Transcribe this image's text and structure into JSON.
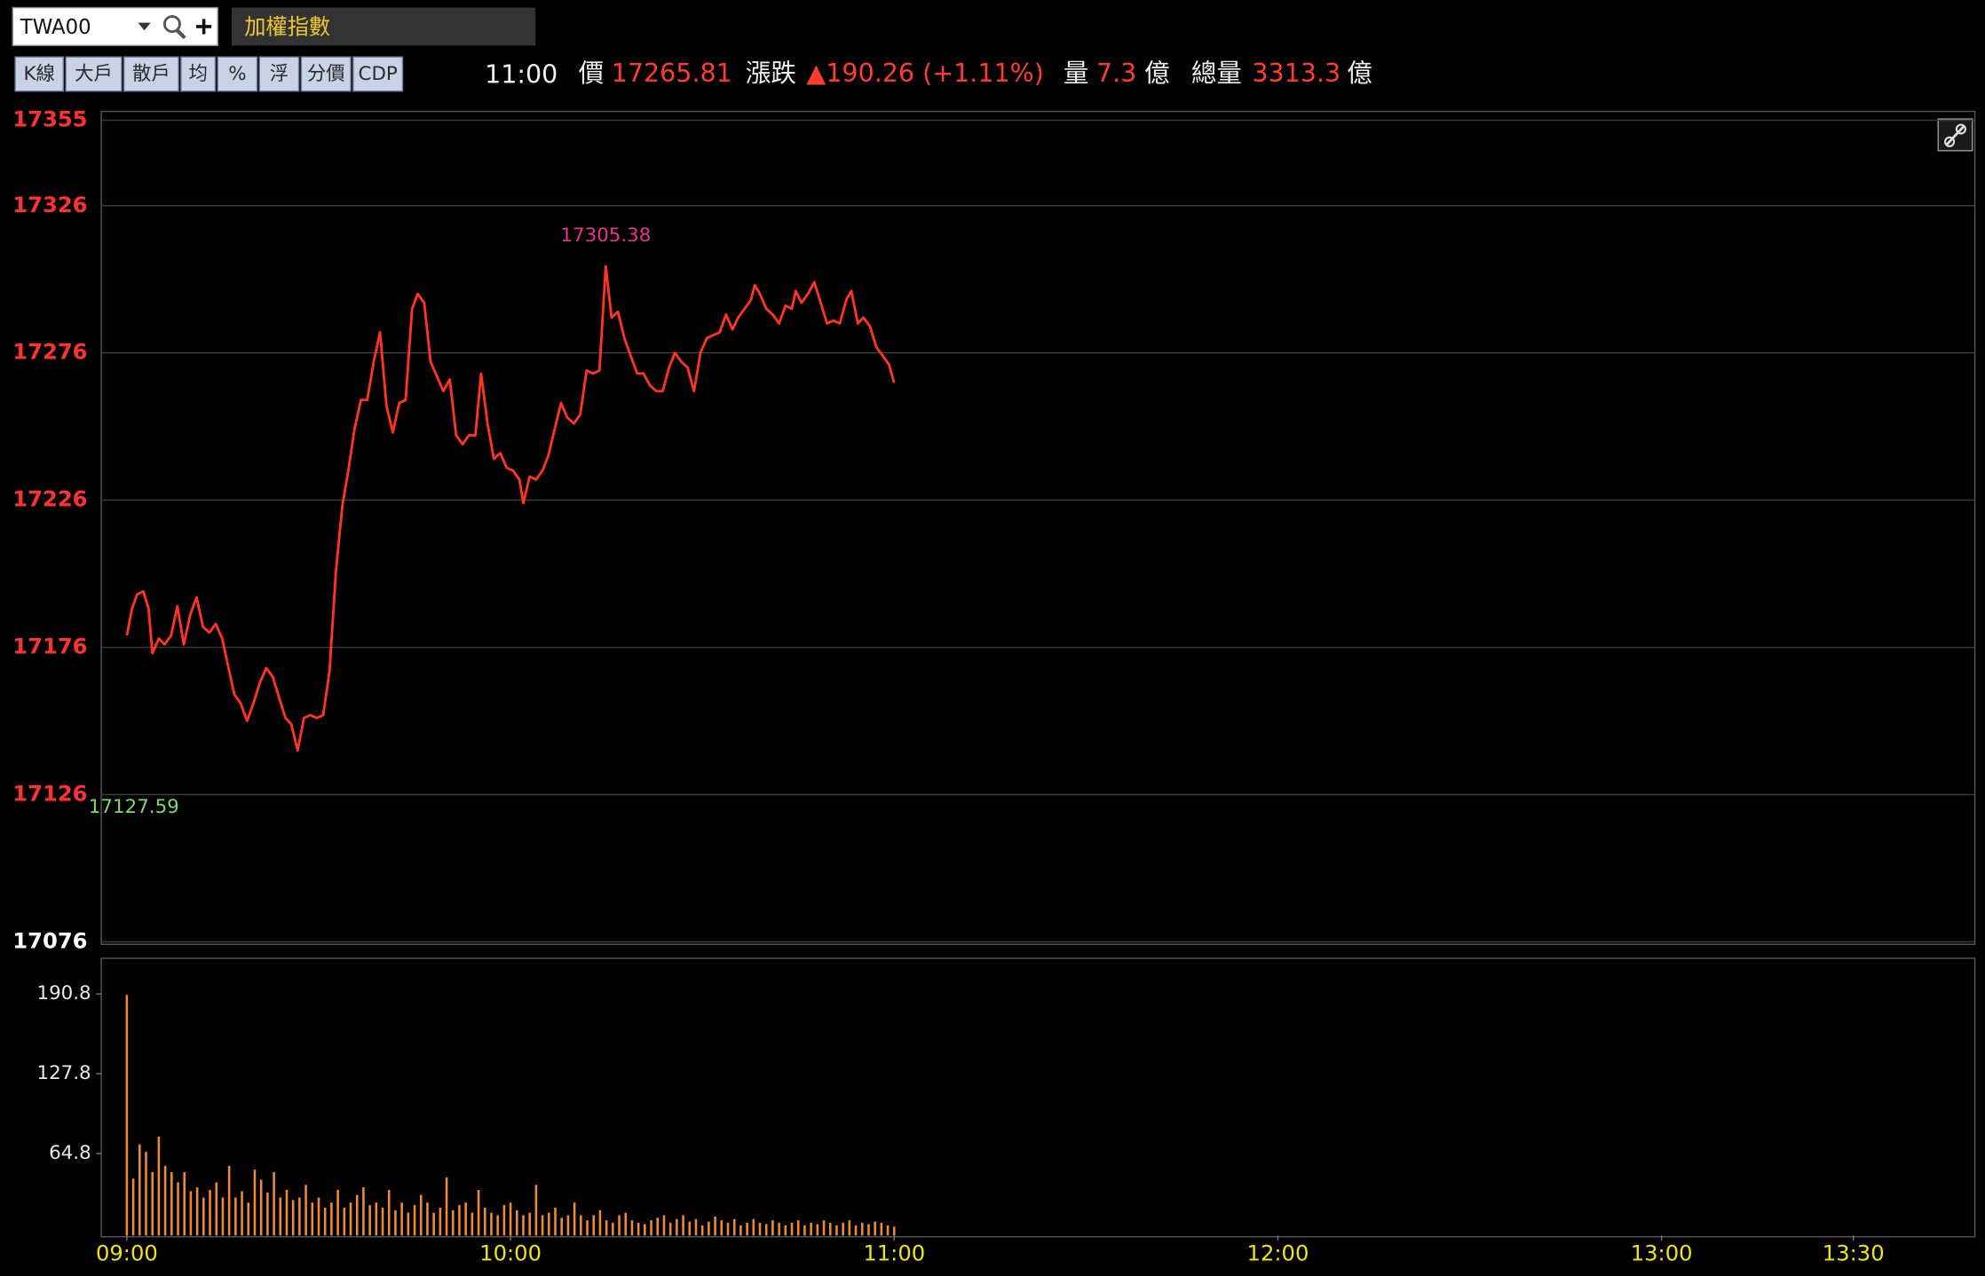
{
  "toolbar": {
    "symbol": "TWA00",
    "name": "加權指數",
    "buttons": [
      "K線",
      "大戶",
      "散戶",
      "均",
      "%",
      "浮",
      "分價",
      "CDP"
    ]
  },
  "quote": {
    "time": "11:00",
    "price_label": "價",
    "price": 17265.81,
    "change_label": "漲跌",
    "change": "▲190.26 (+1.11%)",
    "volume_label": "量",
    "volume": 7.3,
    "volume_unit": "億",
    "total_label": "總量",
    "total": 3313.3,
    "total_unit": "億"
  },
  "chart_data": [
    {
      "type": "line",
      "color": "#ff3322",
      "high": 17305.38,
      "low": 17127.59,
      "xlim": [
        -4,
        289
      ],
      "ylim": [
        17076,
        17355
      ],
      "yticks": [
        17076,
        17126,
        17176,
        17226,
        17276,
        17326,
        17355
      ],
      "grid": true,
      "x": [
        0,
        0.8,
        1.6,
        2.6,
        3.4,
        4.0,
        5.0,
        5.9,
        6.9,
        7.9,
        8.9,
        9.9,
        10.9,
        11.9,
        12.9,
        13.9,
        14.9,
        15.8,
        16.8,
        17.8,
        18.8,
        19.8,
        20.8,
        21.8,
        22.8,
        23.8,
        24.8,
        25.7,
        26.7,
        27.7,
        28.7,
        29.7,
        30.7,
        31.7,
        32.7,
        33.7,
        34.7,
        35.6,
        36.6,
        37.6,
        38.6,
        39.6,
        40.6,
        41.6,
        42.6,
        43.6,
        44.6,
        45.5,
        46.5,
        47.5,
        48.5,
        49.5,
        50.5,
        51.5,
        52.5,
        53.5,
        54.5,
        55.4,
        56.4,
        57.4,
        58.4,
        59.4,
        60.4,
        61.4,
        62.0,
        63.0,
        64.0,
        65.0,
        65.9,
        66.9,
        67.9,
        68.9,
        69.9,
        70.9,
        71.9,
        72.9,
        73.9,
        74.9,
        75.8,
        76.8,
        77.8,
        78.8,
        79.8,
        80.8,
        81.8,
        82.8,
        83.8,
        84.8,
        85.7,
        86.7,
        87.7,
        88.7,
        89.7,
        90.7,
        91.7,
        92.7,
        93.7,
        94.7,
        95.6,
        96.6,
        97.6,
        98.2,
        99.0,
        100.0,
        101.0,
        102.0,
        103.0,
        104.0,
        104.6,
        105.5,
        106.5,
        107.5,
        108.5,
        109.5,
        110.5,
        111.5,
        112.5,
        113.3,
        114.3,
        115.2,
        116.2,
        117.2,
        118.2,
        119.2,
        120.0
      ],
      "values": [
        17180,
        17189,
        17194,
        17195,
        17189,
        17174,
        17179,
        17177,
        17180,
        17190,
        17177,
        17187,
        17193,
        17183,
        17181,
        17184,
        17179,
        17170,
        17160,
        17157,
        17151,
        17157,
        17164,
        17169,
        17166,
        17159,
        17152,
        17150,
        17141,
        17152,
        17153,
        17152,
        17153,
        17168,
        17202,
        17224,
        17237,
        17250,
        17260,
        17260,
        17273,
        17283,
        17258,
        17249,
        17259,
        17260,
        17291,
        17296,
        17293,
        17273,
        17268,
        17263,
        17267,
        17248,
        17245,
        17248,
        17248,
        17269,
        17252,
        17240,
        17242,
        17237,
        17236,
        17233,
        17225,
        17234,
        17233,
        17236,
        17241,
        17250,
        17259,
        17254,
        17252,
        17255,
        17270,
        17269,
        17270,
        17305.38,
        17288,
        17290,
        17281,
        17275,
        17269,
        17269,
        17265,
        17263,
        17263,
        17271,
        17276,
        17273,
        17271,
        17263,
        17276,
        17281,
        17282,
        17283,
        17289,
        17284,
        17288,
        17291,
        17294,
        17299,
        17296,
        17291,
        17289,
        17286,
        17292,
        17291,
        17297,
        17293,
        17296,
        17300,
        17293,
        17286,
        17287,
        17286,
        17294,
        17297,
        17286,
        17288,
        17285,
        17278,
        17275,
        17272,
        17265.81
      ]
    },
    {
      "type": "bar",
      "color": "#f08a30",
      "xlim": [
        -4,
        289
      ],
      "ylim": [
        0,
        219
      ],
      "yticks": [
        64.8,
        127.8,
        190.8
      ],
      "xticks": [
        {
          "value": 0,
          "label": "09:00"
        },
        {
          "value": 60,
          "label": "10:00"
        },
        {
          "value": 120,
          "label": "11:00"
        },
        {
          "value": 180,
          "label": "12:00"
        },
        {
          "value": 240,
          "label": "13:00"
        },
        {
          "value": 270,
          "label": "13:30"
        }
      ],
      "x": [
        0,
        1,
        2,
        3,
        4,
        5,
        6,
        7,
        8,
        9,
        10,
        11,
        12,
        13,
        14,
        15,
        16,
        17,
        18,
        19,
        20,
        21,
        22,
        23,
        24,
        25,
        26,
        27,
        28,
        29,
        30,
        31,
        32,
        33,
        34,
        35,
        36,
        37,
        38,
        39,
        40,
        41,
        42,
        43,
        44,
        45,
        46,
        47,
        48,
        49,
        50,
        51,
        52,
        53,
        54,
        55,
        56,
        57,
        58,
        59,
        60,
        61,
        62,
        63,
        64,
        65,
        66,
        67,
        68,
        69,
        70,
        71,
        72,
        73,
        74,
        75,
        76,
        77,
        78,
        79,
        80,
        81,
        82,
        83,
        84,
        85,
        86,
        87,
        88,
        89,
        90,
        91,
        92,
        93,
        94,
        95,
        96,
        97,
        98,
        99,
        100,
        101,
        102,
        103,
        104,
        105,
        106,
        107,
        108,
        109,
        110,
        111,
        112,
        113,
        114,
        115,
        116,
        117,
        118,
        119,
        120
      ],
      "values": [
        190,
        45,
        72,
        66,
        50,
        78,
        55,
        50,
        42,
        50,
        35,
        38,
        30,
        36,
        42,
        30,
        55,
        30,
        35,
        26,
        52,
        44,
        34,
        50,
        30,
        36,
        28,
        30,
        40,
        26,
        30,
        22,
        26,
        36,
        22,
        26,
        32,
        38,
        24,
        26,
        22,
        36,
        20,
        26,
        18,
        24,
        32,
        26,
        18,
        22,
        46,
        20,
        24,
        26,
        18,
        36,
        22,
        18,
        16,
        24,
        26,
        20,
        16,
        18,
        40,
        16,
        18,
        22,
        14,
        16,
        26,
        16,
        12,
        16,
        20,
        12,
        10,
        16,
        18,
        12,
        10,
        9,
        12,
        14,
        16,
        10,
        13,
        16,
        11,
        13,
        8,
        11,
        15,
        12,
        10,
        13,
        8,
        10,
        13,
        10,
        9,
        12,
        10,
        8,
        10,
        12,
        8,
        10,
        9,
        12,
        10,
        8,
        10,
        12,
        8,
        10,
        9,
        11,
        10,
        8,
        7
      ]
    }
  ]
}
